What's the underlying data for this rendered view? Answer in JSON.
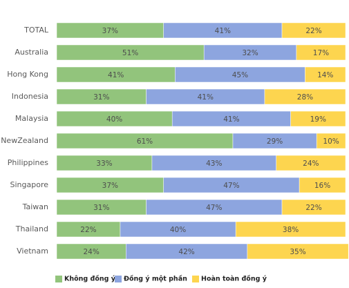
{
  "chart_data": {
    "type": "stacked-bar",
    "orientation": "horizontal",
    "categories": [
      "TOTAL",
      "Australia",
      "Hong Kong",
      "Indonesia",
      "Malaysia",
      "NewZealand",
      "Philippines",
      "Singapore",
      "Taiwan",
      "Thailand",
      "Vietnam"
    ],
    "xlim": [
      0,
      100
    ],
    "series": [
      {
        "name": "Không đồng ý",
        "color": "#92c47c",
        "values": [
          37,
          51,
          41,
          31,
          40,
          61,
          33,
          37,
          31,
          22,
          24
        ],
        "value_labels": [
          "37%",
          "51%",
          "41%",
          "31%",
          "40%",
          "61%",
          "33%",
          "37%",
          "31%",
          "22%",
          "24%"
        ]
      },
      {
        "name": "Đồng ý một phần",
        "color": "#8da5df",
        "values": [
          41,
          32,
          45,
          41,
          41,
          29,
          43,
          47,
          47,
          40,
          42
        ],
        "value_labels": [
          "41%",
          "32%",
          "45%",
          "41%",
          "41%",
          "29%",
          "43%",
          "47%",
          "47%",
          "40%",
          "42%"
        ]
      },
      {
        "name": "Hoàn toàn đồng ý",
        "color": "#fdd54f",
        "values": [
          22,
          17,
          14,
          28,
          19,
          10,
          24,
          16,
          22,
          38,
          35
        ],
        "value_labels": [
          "22%",
          "17%",
          "14%",
          "28%",
          "19%",
          "10%",
          "24%",
          "16%",
          "22%",
          "38%",
          "35%"
        ]
      }
    ],
    "legend": "bottom-left"
  }
}
